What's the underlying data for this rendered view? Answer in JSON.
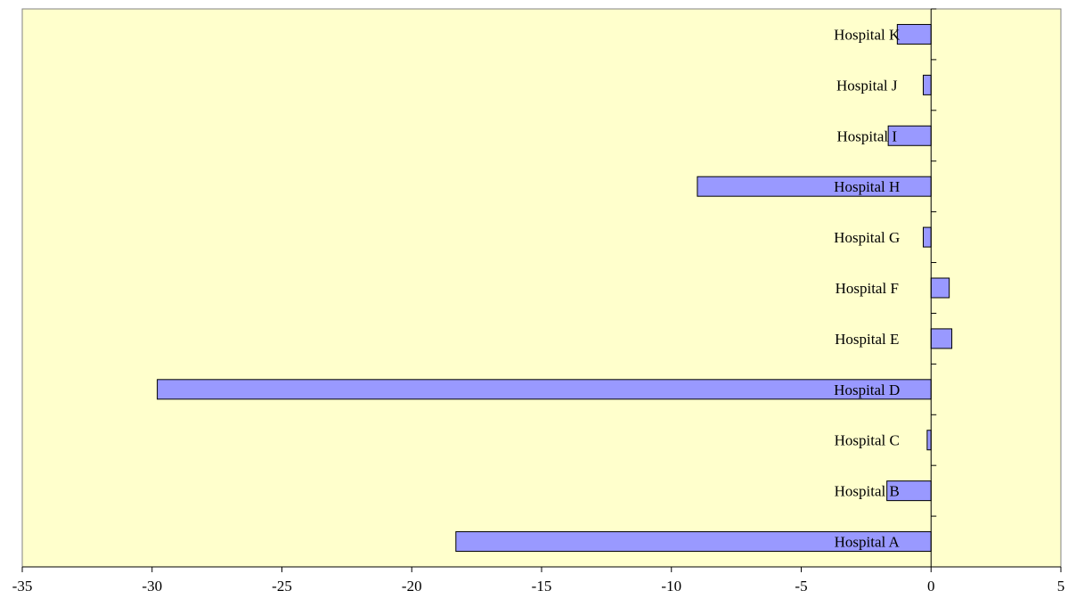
{
  "chart_data": {
    "type": "bar",
    "orientation": "horizontal",
    "categories": [
      "Hospital A",
      "Hospital B",
      "Hospital C",
      "Hospital D",
      "Hospital E",
      "Hospital F",
      "Hospital G",
      "Hospital H",
      "Hospital I",
      "Hospital J",
      "Hospital K"
    ],
    "values": [
      -18.3,
      -1.7,
      -0.15,
      -29.8,
      0.8,
      0.7,
      -0.3,
      -9.0,
      -1.65,
      -0.3,
      -1.3
    ],
    "xlim": [
      -35,
      5
    ],
    "xticks": [
      -35,
      -30,
      -25,
      -20,
      -15,
      -10,
      -5,
      0,
      5
    ],
    "category_labels_position": "at zero line",
    "grid": false,
    "legend": "none",
    "colors": {
      "plot_background": "#ffffcc",
      "bar_fill": "#9999ff",
      "bar_stroke": "#000000"
    }
  }
}
